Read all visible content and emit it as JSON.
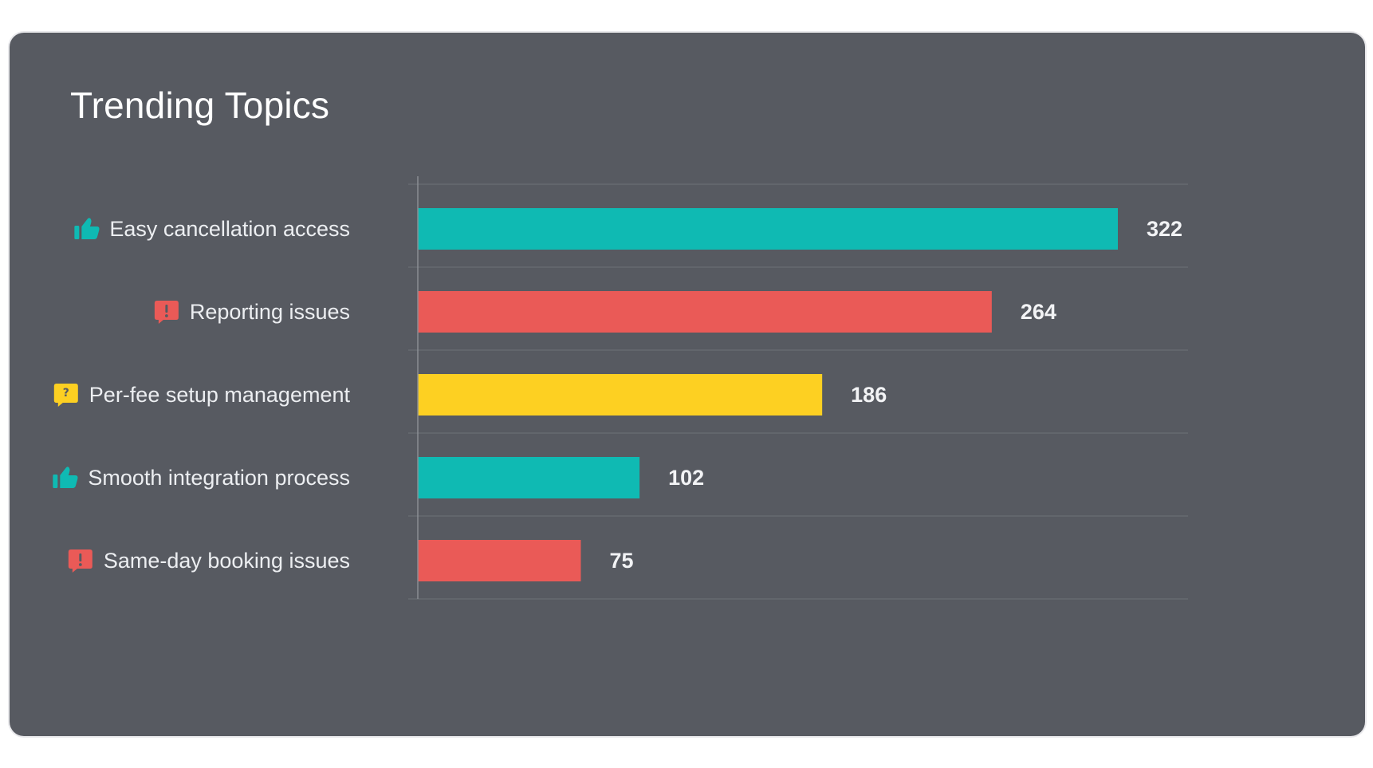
{
  "card": {
    "title": "Trending Topics"
  },
  "colors": {
    "background": "#575a61",
    "positive": "#0fbab3",
    "negative": "#ea5a57",
    "question": "#fdd022",
    "gridline": "#676a71",
    "axis": "#8a8d93"
  },
  "chart_data": {
    "type": "bar",
    "orientation": "horizontal",
    "title": "Trending Topics",
    "xlim": [
      0,
      350
    ],
    "grid": true,
    "legend": "none",
    "categories": [
      "Easy cancellation access",
      "Reporting issues",
      "Per-fee setup management",
      "Smooth integration process",
      "Same-day booking issues"
    ],
    "values": [
      322,
      264,
      186,
      102,
      75
    ],
    "value_labels": [
      "322",
      "264",
      "186",
      "102",
      "75"
    ],
    "icons": [
      "thumbs-up-icon",
      "alert-icon",
      "question-icon",
      "thumbs-up-icon",
      "alert-icon"
    ],
    "sentiment": [
      "positive",
      "negative",
      "question",
      "positive",
      "negative"
    ]
  }
}
